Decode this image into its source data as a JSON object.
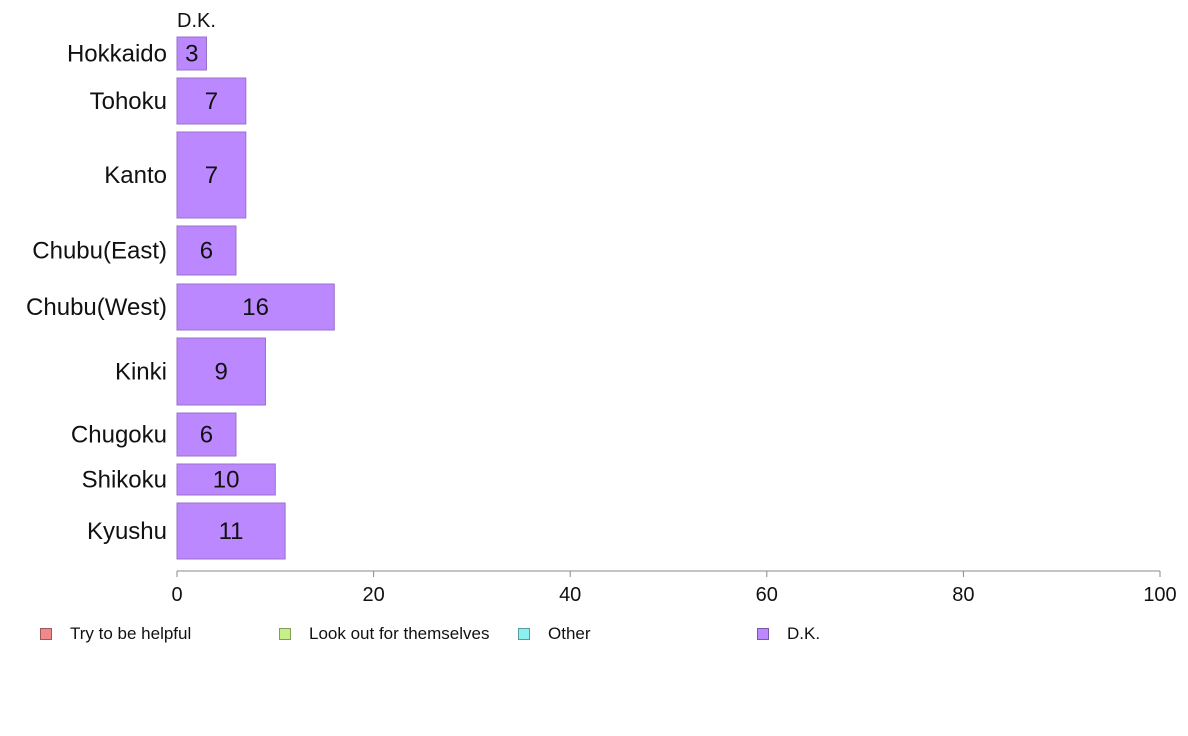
{
  "chart_data": {
    "type": "bar",
    "orientation": "horizontal",
    "stacked": true,
    "categories": [
      "Hokkaido",
      "Tohoku",
      "Kanto",
      "Chubu(East)",
      "Chubu(West)",
      "Kinki",
      "Chugoku",
      "Shikoku",
      "Kyushu"
    ],
    "series": [
      {
        "name": "Try to be helpful",
        "color": "#f08a8a",
        "values": [
          0,
          0,
          0,
          0,
          0,
          0,
          0,
          0,
          0
        ]
      },
      {
        "name": "Look out for themselves",
        "color": "#c8f08a",
        "values": [
          0,
          0,
          0,
          0,
          0,
          0,
          0,
          0,
          0
        ]
      },
      {
        "name": "Other",
        "color": "#8af0f0",
        "values": [
          0,
          0,
          0,
          0,
          0,
          0,
          0,
          0,
          0
        ]
      },
      {
        "name": "D.K.",
        "color": "#bb88ff",
        "values": [
          3,
          7,
          7,
          6,
          16,
          9,
          6,
          10,
          11
        ]
      }
    ],
    "data_labels": [
      "3",
      "7",
      "7",
      "6",
      "16",
      "9",
      "6",
      "10",
      "11"
    ],
    "column_label": "D.K.",
    "xlim": [
      0,
      100
    ],
    "xticks": [
      0,
      20,
      40,
      60,
      80,
      100
    ],
    "grid": false,
    "legend_position": "bottom"
  }
}
